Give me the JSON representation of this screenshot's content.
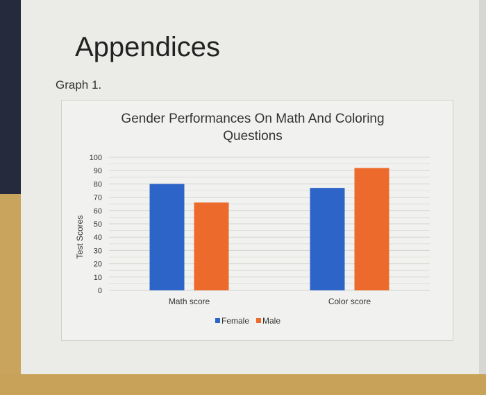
{
  "slide": {
    "title": "Appendices",
    "subtitle": "Graph 1."
  },
  "colors": {
    "female": "#2d64c7",
    "male": "#ec6a2c",
    "grid": "#d3d3d0",
    "text": "#333333"
  },
  "chart_data": {
    "type": "bar",
    "title_lines": [
      "Gender Performances On Math And Coloring",
      "Questions"
    ],
    "ylabel": "Test Scores",
    "xlabel": "",
    "ylim": [
      0,
      100
    ],
    "yticks": [
      0,
      10,
      20,
      30,
      40,
      50,
      60,
      70,
      80,
      90,
      100
    ],
    "categories": [
      "Math score",
      "Color score"
    ],
    "series": [
      {
        "name": "Female",
        "values": [
          80,
          77
        ]
      },
      {
        "name": "Male",
        "values": [
          66,
          92
        ]
      }
    ],
    "legend_position": "bottom",
    "grid": true
  }
}
